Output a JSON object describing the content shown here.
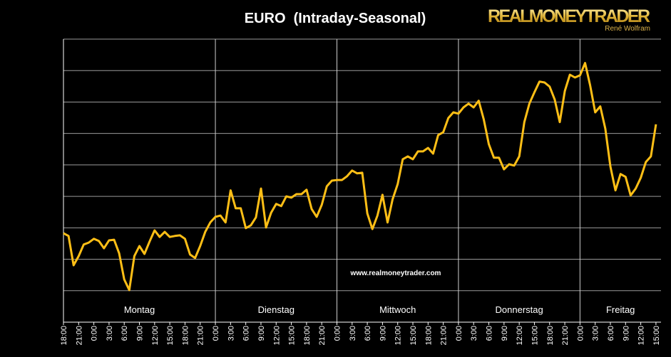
{
  "chart_data": {
    "type": "line",
    "title": "EURO  (Intraday-Seasonal)",
    "logo": "REALMONEYTRADER",
    "logo_subtitle": "René Wolfram",
    "annotations": [
      "www.realmoneytrader.com"
    ],
    "day_labels": [
      "Montag",
      "Dienstag",
      "Mittwoch",
      "Donnerstag",
      "Freitag"
    ],
    "categories": [
      "18:00",
      null,
      null,
      "21:00",
      null,
      null,
      "0:00",
      null,
      null,
      "3:00",
      null,
      null,
      "6:00",
      null,
      null,
      "9:00",
      null,
      null,
      "12:00",
      null,
      null,
      "15:00",
      null,
      null,
      "18:00",
      null,
      null,
      "21:00",
      null,
      null,
      "0:00",
      null,
      null,
      "3:00",
      null,
      null,
      "6:00",
      null,
      null,
      "9:00",
      null,
      null,
      "12:00",
      null,
      null,
      "15:00",
      null,
      null,
      "18:00",
      null,
      null,
      "21:00",
      null,
      null,
      "0:00",
      null,
      null,
      "3:00",
      null,
      null,
      "6:00",
      null,
      null,
      "9:00",
      null,
      null,
      "12:00",
      null,
      null,
      "15:00",
      null,
      null,
      "18:00",
      null,
      null,
      "21:00",
      null,
      null,
      "0:00",
      null,
      null,
      "3:00",
      null,
      null,
      "6:00",
      null,
      null,
      "9:00",
      null,
      null,
      "12:00",
      null,
      null,
      "15:00",
      null,
      null,
      "18:00",
      null,
      null,
      "21:00",
      null,
      null,
      "0:00",
      null,
      null,
      "3:00",
      null,
      null,
      "6:00",
      null,
      null,
      "9:00",
      null,
      null,
      "12:00",
      null,
      null,
      "15:00"
    ],
    "values": [
      2.83,
      2.74,
      1.81,
      2.1,
      2.47,
      2.53,
      2.65,
      2.58,
      2.35,
      2.6,
      2.62,
      2.19,
      1.36,
      1.02,
      2.1,
      2.42,
      2.17,
      2.56,
      2.92,
      2.71,
      2.87,
      2.71,
      2.74,
      2.76,
      2.65,
      2.15,
      2.04,
      2.42,
      2.87,
      3.17,
      3.35,
      3.39,
      3.17,
      4.19,
      3.62,
      3.62,
      2.99,
      3.08,
      3.33,
      4.25,
      3.01,
      3.48,
      3.76,
      3.69,
      4.0,
      3.96,
      4.07,
      4.07,
      4.21,
      3.6,
      3.35,
      3.73,
      4.32,
      4.5,
      4.52,
      4.52,
      4.64,
      4.82,
      4.73,
      4.75,
      3.46,
      2.96,
      3.39,
      4.05,
      3.17,
      3.91,
      4.39,
      5.18,
      5.27,
      5.18,
      5.43,
      5.43,
      5.54,
      5.36,
      5.95,
      6.04,
      6.49,
      6.67,
      6.63,
      6.83,
      6.95,
      6.83,
      7.04,
      6.45,
      5.66,
      5.23,
      5.23,
      4.86,
      5.02,
      4.98,
      5.27,
      6.36,
      6.95,
      7.31,
      7.65,
      7.62,
      7.49,
      7.08,
      6.36,
      7.35,
      7.87,
      7.78,
      7.85,
      8.24,
      7.53,
      6.67,
      6.86,
      6.15,
      4.95,
      4.19,
      4.71,
      4.62,
      4.03,
      4.25,
      4.59,
      5.09,
      5.27,
      6.29
    ],
    "color": "#ffbf16",
    "ylim": [
      0,
      9
    ],
    "yticks": [
      0,
      1,
      2,
      3,
      4,
      5,
      6,
      7,
      8,
      9
    ],
    "grid": true
  }
}
